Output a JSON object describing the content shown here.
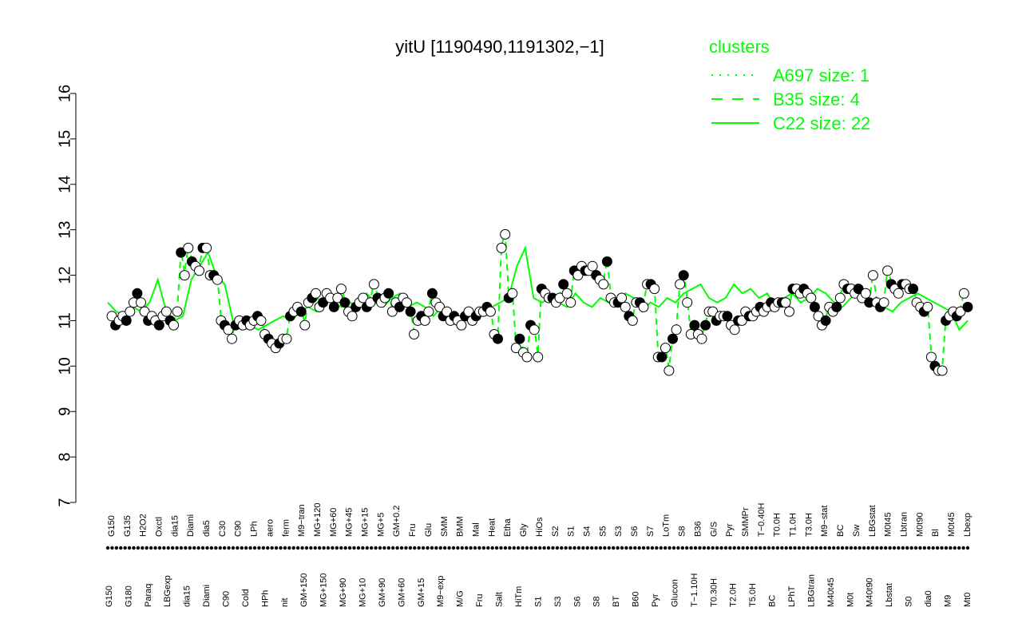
{
  "chart_data": {
    "type": "line",
    "title": "yitU [1190490,1191302,−1]",
    "ylim": [
      7,
      16
    ],
    "yticks": [
      "7",
      "8",
      "9",
      "10",
      "11",
      "12",
      "13",
      "14",
      "15",
      "16"
    ],
    "grid": false,
    "legend": {
      "placement": "top-right",
      "title": "clusters",
      "color": "#00ff00",
      "entries": [
        {
          "label": "A697 size: 1",
          "style": "dotted"
        },
        {
          "label": "B35 size: 4",
          "style": "dashed"
        },
        {
          "label": "C22 size: 22",
          "style": "solid"
        }
      ]
    },
    "colors": {
      "cluster": "#00ff00",
      "point_fill_open": "#ffffff",
      "point_fill_filled": "#000000"
    },
    "xlabels_top": [
      "G150",
      "G135",
      "H2O2",
      "Oxctl",
      "dia15",
      "Diami",
      "dia5",
      "C30",
      "C90",
      "LPh",
      "aero",
      "ferm",
      "M9−tran",
      "MG+120",
      "MG+60",
      "MG+45",
      "MG+15",
      "MG+5",
      "GM+0.2",
      "Fru",
      "Glu",
      "SMM",
      "BMM",
      "Mal",
      "Heat",
      "Etha",
      "Gly",
      "HiOs",
      "S2",
      "S1",
      "S4",
      "S5",
      "S3",
      "S6",
      "S7",
      "LoTm",
      "S8",
      "B36",
      "G/S",
      "Pyr",
      "SMMPr",
      "T−0.40H",
      "T0.0H",
      "T1.0H",
      "T3.0H",
      "M9−stat",
      "BC",
      "Sw",
      "LBGstat",
      "M0t45",
      "Lbtran",
      "M0t90",
      "Bl",
      "M0t45",
      "Lbexp"
    ],
    "xlabels_bottom": [
      "G150",
      "G180",
      "Paraq",
      "LBGexp",
      "dia15",
      "Diami",
      "C90",
      "Cold",
      "HPh",
      "nit",
      "GM+150",
      "MG+150",
      "MG+90",
      "MG+10",
      "GM+90",
      "GM+60",
      "GM+15",
      "M9−exp",
      "M/G",
      "Fru",
      "Salt",
      "HiTm",
      "S1",
      "S3",
      "S6",
      "S8",
      "BT",
      "B60",
      "Pyr",
      "Glucon",
      "T−1.10H",
      "T0.30H",
      "T2.0H",
      "T5.0H",
      "BC",
      "LPhT",
      "LBGtran",
      "M40t45",
      "M0t",
      "M40t90",
      "Lbstat",
      "S0",
      "dia0",
      "M9",
      "Mt0"
    ],
    "series": [
      {
        "cluster": "C22",
        "style": "solid",
        "values": [
          11.4,
          11.2,
          11.1,
          11.3,
          11.2,
          11.4,
          11.9,
          11.2,
          11.0,
          11.1,
          11.9,
          12.2,
          12.5,
          12.0,
          11.8,
          11.0,
          10.8,
          10.9,
          10.8,
          10.9,
          11.0,
          11.1,
          11.0,
          11.2,
          11.3,
          11.2,
          11.5,
          11.4,
          11.3,
          11.4,
          11.3,
          11.6,
          11.4,
          11.3,
          11.5,
          11.6,
          11.3,
          11.4,
          11.3,
          11.1,
          11.3,
          11.2,
          11.1,
          11.0,
          11.2,
          11.1,
          11.3,
          11.4,
          11.5,
          12.2,
          12.6,
          11.5,
          11.4,
          11.5,
          11.4,
          11.3,
          11.6,
          11.4,
          11.3,
          11.5,
          11.4,
          11.5,
          11.6,
          11.5,
          11.2,
          11.4,
          11.3,
          11.5,
          11.4,
          11.6,
          11.7,
          11.8,
          11.5,
          11.4,
          11.5,
          11.8,
          11.6,
          11.7,
          11.5,
          11.6,
          11.3,
          11.5,
          11.6,
          11.4,
          11.5,
          11.7,
          11.6,
          11.4,
          11.3,
          11.5,
          11.6,
          11.4,
          11.5,
          11.3,
          11.2,
          11.4,
          11.5,
          11.6,
          11.5,
          11.4,
          11.3,
          11.2,
          10.8,
          11.0
        ]
      },
      {
        "cluster": "B35",
        "style": "dashed",
        "values": [
          null,
          null,
          null,
          null,
          null,
          null,
          null,
          null,
          null,
          null,
          null,
          null,
          null,
          null,
          null,
          null,
          null,
          null,
          null,
          null,
          null,
          null,
          null,
          null,
          null,
          null,
          null,
          null,
          null,
          null,
          null,
          null,
          null,
          null,
          null,
          null,
          null,
          null,
          null,
          null,
          null,
          null,
          null,
          null,
          null,
          null,
          null,
          null,
          null,
          null,
          null,
          null,
          null,
          null,
          null,
          null,
          null,
          null,
          null,
          null,
          null,
          null,
          null,
          null,
          null,
          null,
          null,
          null,
          null,
          null,
          null,
          null,
          null,
          null,
          null,
          null,
          null,
          null,
          null,
          null,
          null,
          null,
          null,
          null,
          null,
          null,
          null,
          null,
          null,
          null,
          null,
          null,
          null,
          null,
          null,
          null,
          null,
          null,
          null,
          null,
          null,
          null,
          null,
          null
        ]
      },
      {
        "cluster": "A697",
        "style": "dotted",
        "values": []
      }
    ],
    "points": [
      11.1,
      10.9,
      11.0,
      11.1,
      11.0,
      11.2,
      11.4,
      11.6,
      11.4,
      11.2,
      11.0,
      11.1,
      11.0,
      10.9,
      11.1,
      11.2,
      11.0,
      10.9,
      11.2,
      12.5,
      12.0,
      12.6,
      12.3,
      12.2,
      12.1,
      12.6,
      12.6,
      12.0,
      12.0,
      11.9,
      11.0,
      10.9,
      10.8,
      10.6,
      10.9,
      11.0,
      10.9,
      11.0,
      10.9,
      11.0,
      11.1,
      11.0,
      10.7,
      10.6,
      10.5,
      10.4,
      10.5,
      10.6,
      10.6,
      11.1,
      11.2,
      11.3,
      11.2,
      10.9,
      11.4,
      11.5,
      11.6,
      11.3,
      11.4,
      11.6,
      11.5,
      11.3,
      11.5,
      11.7,
      11.4,
      11.2,
      11.1,
      11.3,
      11.4,
      11.5,
      11.3,
      11.4,
      11.8,
      11.5,
      11.4,
      11.5,
      11.6,
      11.2,
      11.4,
      11.3,
      11.5,
      11.4,
      11.2,
      10.7,
      11.0,
      11.1,
      11.0,
      11.2,
      11.6,
      11.4,
      11.3,
      11.1,
      11.2,
      11.0,
      11.1,
      11.0,
      10.9,
      11.1,
      11.2,
      11.0,
      11.1,
      11.2,
      11.2,
      11.3,
      11.2,
      10.7,
      10.6,
      12.6,
      12.9,
      11.5,
      11.6,
      10.4,
      10.6,
      10.3,
      10.2,
      10.9,
      10.8,
      10.2,
      11.7,
      11.6,
      11.5,
      11.5,
      11.4,
      11.5,
      11.8,
      11.6,
      11.4,
      12.1,
      12.0,
      12.2,
      12.1,
      12.1,
      12.2,
      12.0,
      11.9,
      11.8,
      12.3,
      11.5,
      11.4,
      11.4,
      11.5,
      11.3,
      11.1,
      11.0,
      11.4,
      11.4,
      11.3,
      11.8,
      11.8,
      11.7,
      10.2,
      10.2,
      10.4,
      9.9,
      10.6,
      10.8,
      11.8,
      12.0,
      11.4,
      10.7,
      10.9,
      10.7,
      10.6,
      10.9,
      11.2,
      11.2,
      11.0,
      11.1,
      11.1,
      11.1,
      10.9,
      10.8,
      11.0,
      11.0,
      11.2,
      11.1,
      11.1,
      11.2,
      11.3,
      11.2,
      11.3,
      11.4,
      11.3,
      11.4,
      11.4,
      11.4,
      11.2,
      11.7,
      11.7,
      11.6,
      11.7,
      11.6,
      11.5,
      11.3,
      11.1,
      10.9,
      11.0,
      11.3,
      11.2,
      11.3,
      11.5,
      11.8,
      11.7,
      11.7,
      11.6,
      11.7,
      11.5,
      11.6,
      11.4,
      12.0,
      11.4,
      11.3,
      11.4,
      12.1,
      11.8,
      11.7,
      11.6,
      11.8,
      11.8,
      11.7,
      11.7,
      11.4,
      11.3,
      11.2,
      11.3,
      10.2,
      10.0,
      9.9,
      9.9,
      11.0,
      11.1,
      11.2,
      11.1,
      11.2,
      11.6,
      11.3
    ]
  }
}
